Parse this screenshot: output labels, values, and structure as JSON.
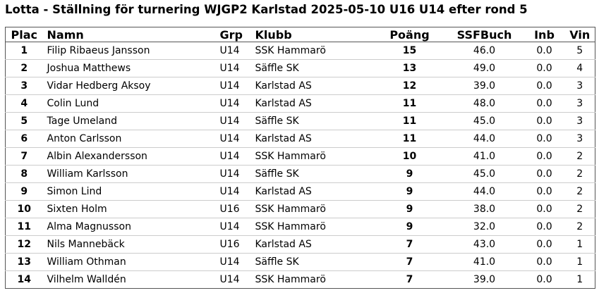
{
  "title": "Lotta - Ställning för turnering WJGP2 Karlstad 2025-05-10 U16 U14 efter rond 5",
  "table": {
    "headers": [
      "Plac",
      "Namn",
      "Grp",
      "Klubb",
      "Poäng",
      "SSFBuch",
      "Inb",
      "Vin"
    ],
    "rows": [
      [
        "1",
        "Filip Ribaeus Jansson",
        "U14",
        "SSK Hammarö",
        "15",
        "46.0",
        "0.0",
        "5"
      ],
      [
        "2",
        "Joshua Matthews",
        "U14",
        "Säffle SK",
        "13",
        "49.0",
        "0.0",
        "4"
      ],
      [
        "3",
        "Vidar Hedberg Aksoy",
        "U14",
        "Karlstad AS",
        "12",
        "39.0",
        "0.0",
        "3"
      ],
      [
        "4",
        "Colin Lund",
        "U14",
        "Karlstad AS",
        "11",
        "48.0",
        "0.0",
        "3"
      ],
      [
        "5",
        "Tage Umeland",
        "U14",
        "Säffle SK",
        "11",
        "45.0",
        "0.0",
        "3"
      ],
      [
        "6",
        "Anton Carlsson",
        "U14",
        "Karlstad AS",
        "11",
        "44.0",
        "0.0",
        "3"
      ],
      [
        "7",
        "Albin Alexandersson",
        "U14",
        "SSK Hammarö",
        "10",
        "41.0",
        "0.0",
        "2"
      ],
      [
        "8",
        "William Karlsson",
        "U14",
        "Säffle SK",
        "9",
        "45.0",
        "0.0",
        "2"
      ],
      [
        "9",
        "Simon Lind",
        "U14",
        "Karlstad AS",
        "9",
        "44.0",
        "0.0",
        "2"
      ],
      [
        "10",
        "Sixten Holm",
        "U16",
        "SSK Hammarö",
        "9",
        "38.0",
        "0.0",
        "2"
      ],
      [
        "11",
        "Alma Magnusson",
        "U14",
        "SSK Hammarö",
        "9",
        "32.0",
        "0.0",
        "2"
      ],
      [
        "12",
        "Nils Mannebäck",
        "U16",
        "Karlstad AS",
        "7",
        "43.0",
        "0.0",
        "1"
      ],
      [
        "13",
        "William Othman",
        "U14",
        "Säffle SK",
        "7",
        "41.0",
        "0.0",
        "1"
      ],
      [
        "14",
        "Vilhelm Walldén",
        "U14",
        "SSK Hammarö",
        "7",
        "39.0",
        "0.0",
        "1"
      ]
    ]
  }
}
